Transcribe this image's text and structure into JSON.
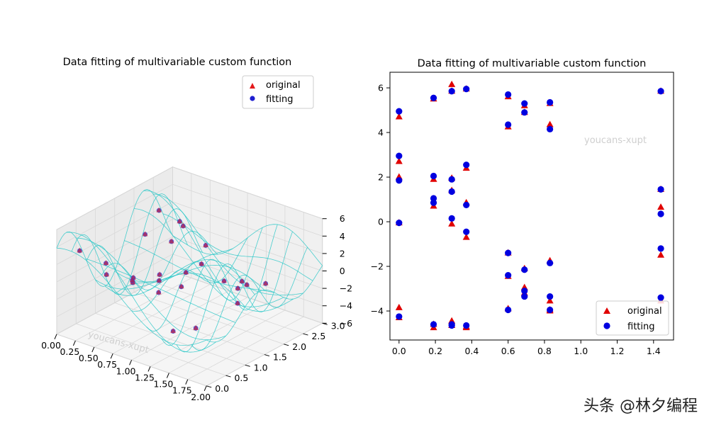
{
  "brand": {
    "text": "头条 @林夕编程"
  },
  "chart_data": [
    {
      "type": "scatter",
      "projection": "3d",
      "title": "Data fitting of multivariable custom function",
      "xlim": [
        0,
        2
      ],
      "ylim": [
        0,
        3
      ],
      "zlim": [
        -6,
        6
      ],
      "x_ticks": [
        "0.00",
        "0.25",
        "0.50",
        "0.75",
        "1.00",
        "1.25",
        "1.50",
        "1.75",
        "2.00"
      ],
      "y_ticks": [
        "0.0",
        "0.5",
        "1.0",
        "1.5",
        "2.0",
        "2.5",
        "3.0"
      ],
      "z_ticks": [
        "−6",
        "−4",
        "−2",
        "0",
        "2",
        "4",
        "6"
      ],
      "legend": {
        "position": "upper-right",
        "entries": [
          "original",
          "fitting"
        ]
      },
      "watermark": "youcans-xupt",
      "surface": {
        "style": "wireframe",
        "color": "#20c5c5"
      },
      "colors": {
        "original": "#e31a1c",
        "fitting": "#1f1fd0",
        "grid_pane": "#f2f2f2"
      }
    },
    {
      "type": "scatter",
      "title": "Data fitting of multivariable custom function",
      "xlim": [
        -0.05,
        1.51
      ],
      "ylim": [
        -5.3,
        6.7
      ],
      "x_ticks": [
        "0.0",
        "0.2",
        "0.4",
        "0.6",
        "0.8",
        "1.0",
        "1.2",
        "1.4"
      ],
      "y_ticks": [
        "−4",
        "−2",
        "0",
        "2",
        "4",
        "6"
      ],
      "legend": {
        "position": "lower-right",
        "entries": [
          "original",
          "fitting"
        ]
      },
      "watermark": "youcans-xupt",
      "series": [
        {
          "name": "original",
          "marker": "triangle",
          "color": "#e00000",
          "x": [
            0.0,
            0.0,
            0.0,
            0.0,
            0.0,
            0.0,
            0.19,
            0.19,
            0.19,
            0.19,
            0.19,
            0.29,
            0.29,
            0.29,
            0.29,
            0.29,
            0.29,
            0.29,
            0.37,
            0.37,
            0.37,
            0.37,
            0.37,
            0.37,
            0.6,
            0.6,
            0.6,
            0.6,
            0.6,
            0.69,
            0.69,
            0.69,
            0.69,
            0.69,
            0.83,
            0.83,
            0.83,
            0.83,
            0.83,
            0.83,
            1.44,
            1.44,
            1.44,
            1.44,
            1.44
          ],
          "y": [
            4.7,
            2.7,
            2.0,
            -0.05,
            -3.85,
            -4.3,
            5.5,
            1.9,
            0.7,
            -4.75,
            -4.6,
            6.15,
            5.85,
            1.95,
            1.4,
            -0.1,
            -4.45,
            -4.65,
            5.95,
            2.4,
            0.85,
            -0.7,
            -4.75,
            -4.7,
            5.6,
            4.25,
            -1.4,
            -2.45,
            -3.9,
            5.2,
            4.9,
            -2.1,
            -2.95,
            -3.2,
            5.3,
            4.35,
            -1.75,
            -3.55,
            -4.0,
            -3.95,
            5.85,
            0.65,
            1.45,
            -1.5,
            -3.55
          ]
        },
        {
          "name": "fitting",
          "marker": "circle",
          "color": "#0000e0",
          "x": [
            0.0,
            0.0,
            0.0,
            0.0,
            0.0,
            0.19,
            0.19,
            0.19,
            0.19,
            0.19,
            0.29,
            0.29,
            0.29,
            0.29,
            0.29,
            0.29,
            0.37,
            0.37,
            0.37,
            0.37,
            0.37,
            0.6,
            0.6,
            0.6,
            0.6,
            0.6,
            0.69,
            0.69,
            0.69,
            0.69,
            0.69,
            0.83,
            0.83,
            0.83,
            0.83,
            0.83,
            1.44,
            1.44,
            1.44,
            1.44,
            1.44
          ],
          "y": [
            4.95,
            2.95,
            1.85,
            -0.05,
            -4.25,
            5.55,
            2.05,
            1.05,
            0.85,
            -4.6,
            5.85,
            1.9,
            1.35,
            0.15,
            -4.6,
            -4.65,
            5.95,
            2.55,
            0.75,
            -0.45,
            -4.65,
            5.7,
            4.35,
            -1.4,
            -2.4,
            -3.95,
            5.3,
            4.9,
            -2.15,
            -3.1,
            -3.35,
            5.35,
            4.15,
            -1.85,
            -3.35,
            -3.95,
            5.85,
            1.45,
            0.35,
            -1.2,
            -3.4
          ]
        }
      ],
      "colors": {
        "original": "#e00000",
        "fitting": "#0000e0"
      }
    }
  ]
}
